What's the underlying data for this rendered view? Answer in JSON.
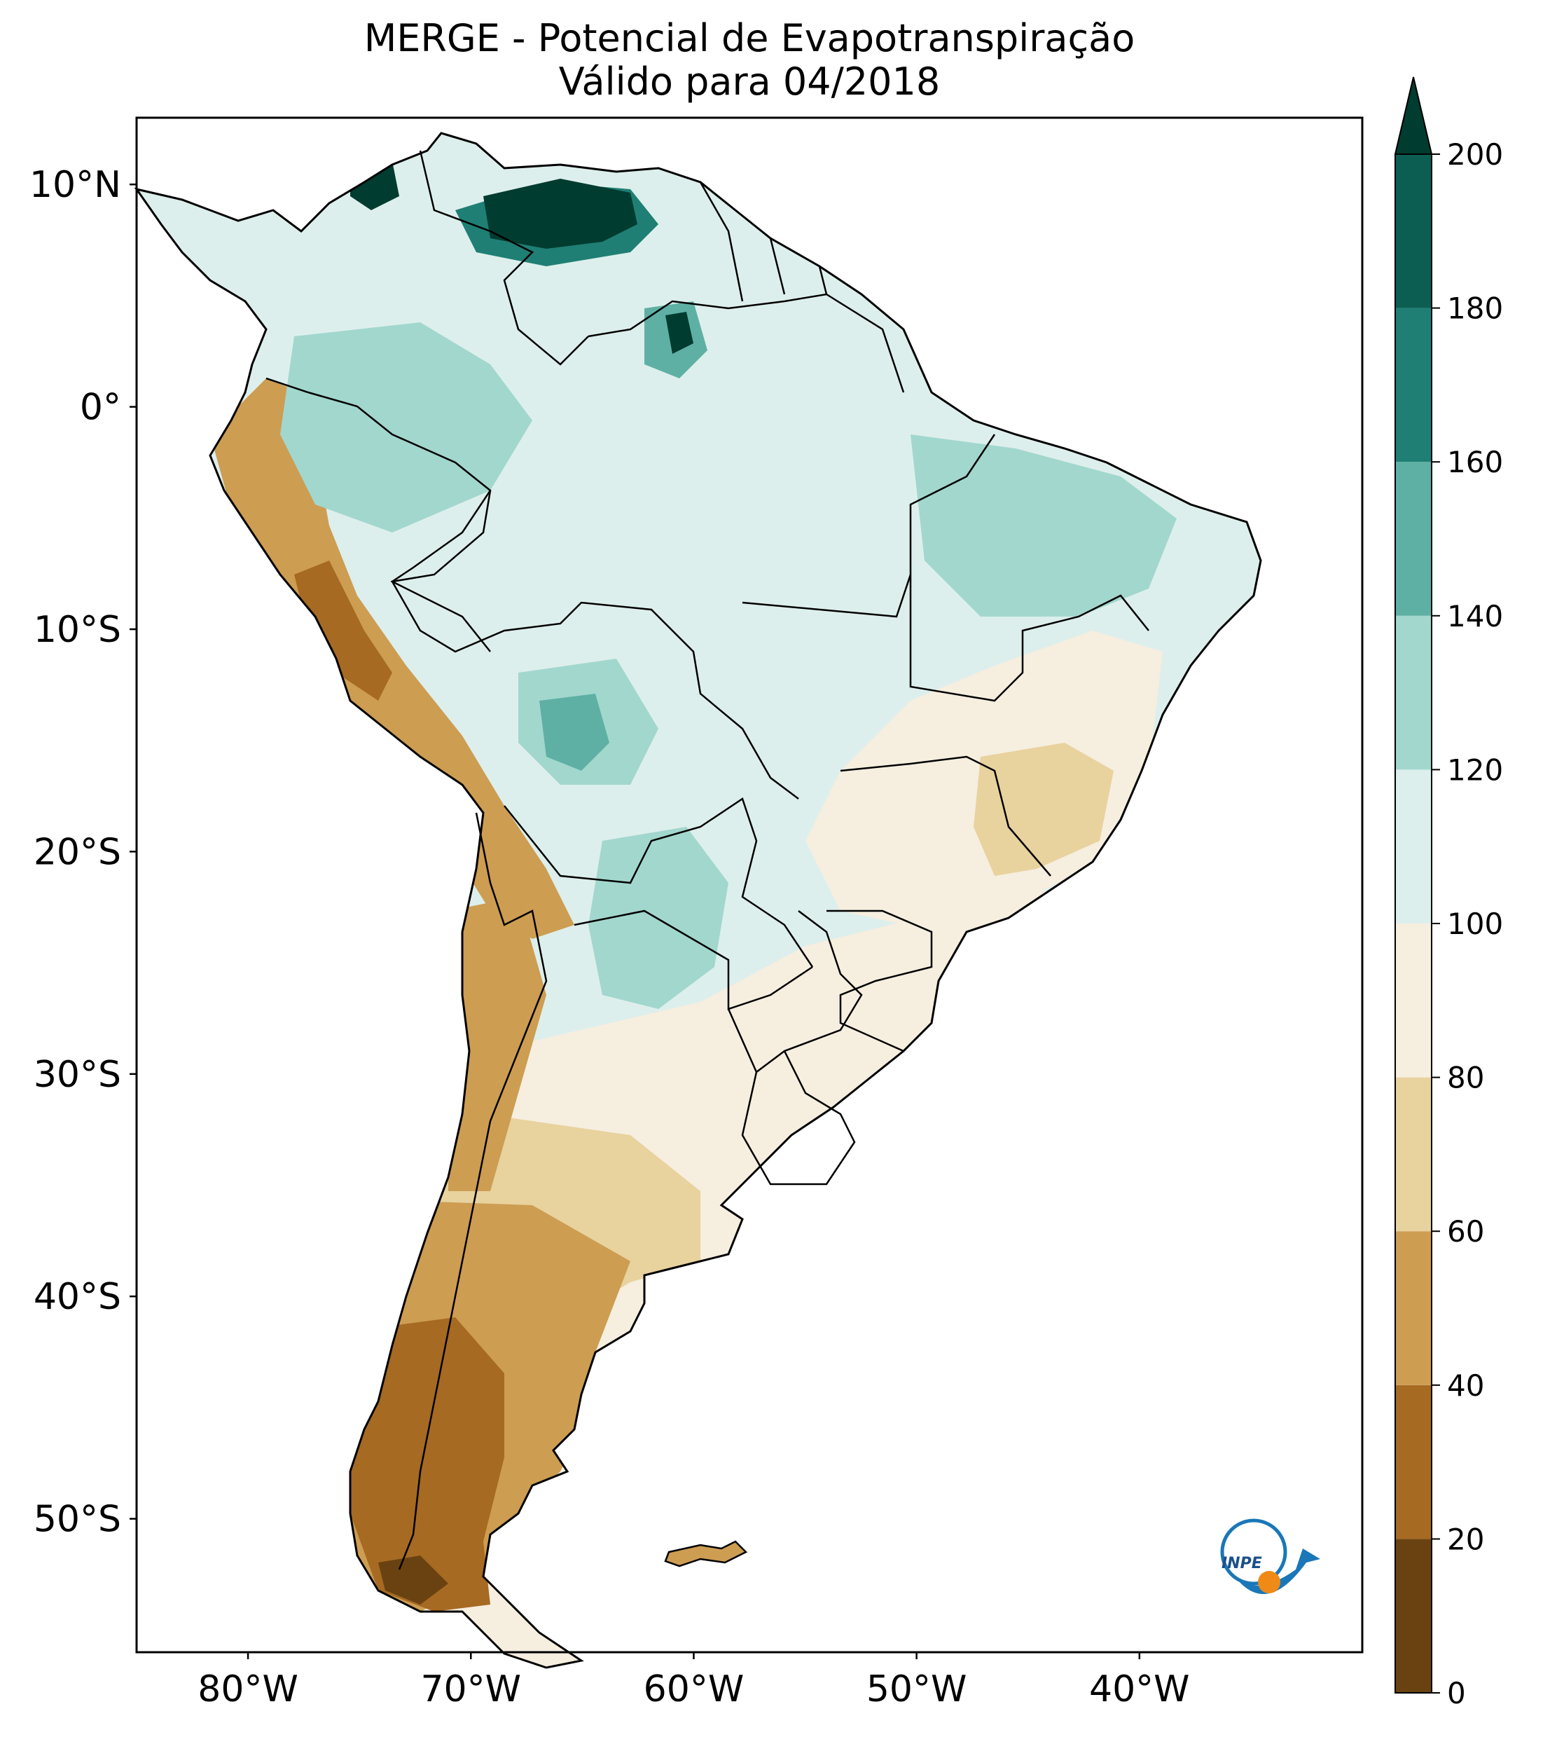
{
  "figure": {
    "title_line1": "MERGE - Potencial de Evapotranspiração",
    "title_line2": "Válido para 04/2018"
  },
  "map": {
    "lon_ticks": [
      "80°W",
      "70°W",
      "60°W",
      "50°W",
      "40°W"
    ],
    "lat_ticks": [
      "10°N",
      "0°",
      "10°S",
      "20°S",
      "30°S",
      "40°S",
      "50°S"
    ],
    "lon_range_deg": [
      -85,
      -30
    ],
    "lat_range_deg": [
      -56,
      13
    ],
    "variable": "Potencial de Evapotranspiração"
  },
  "colorbar": {
    "levels": [
      0,
      20,
      40,
      60,
      80,
      100,
      120,
      140,
      160,
      180,
      200
    ],
    "labels": [
      "0",
      "20",
      "40",
      "60",
      "80",
      "100",
      "120",
      "140",
      "160",
      "180",
      "200"
    ],
    "colors": [
      "#6a4212",
      "#a66a22",
      "#cd9d52",
      "#e8d29e",
      "#f6eedf",
      "#ddefec",
      "#a2d7ce",
      "#5fb0a4",
      "#1f7f74",
      "#0c5e52",
      "#013c30"
    ],
    "extend": "max"
  },
  "logo": {
    "text": "INPE"
  }
}
